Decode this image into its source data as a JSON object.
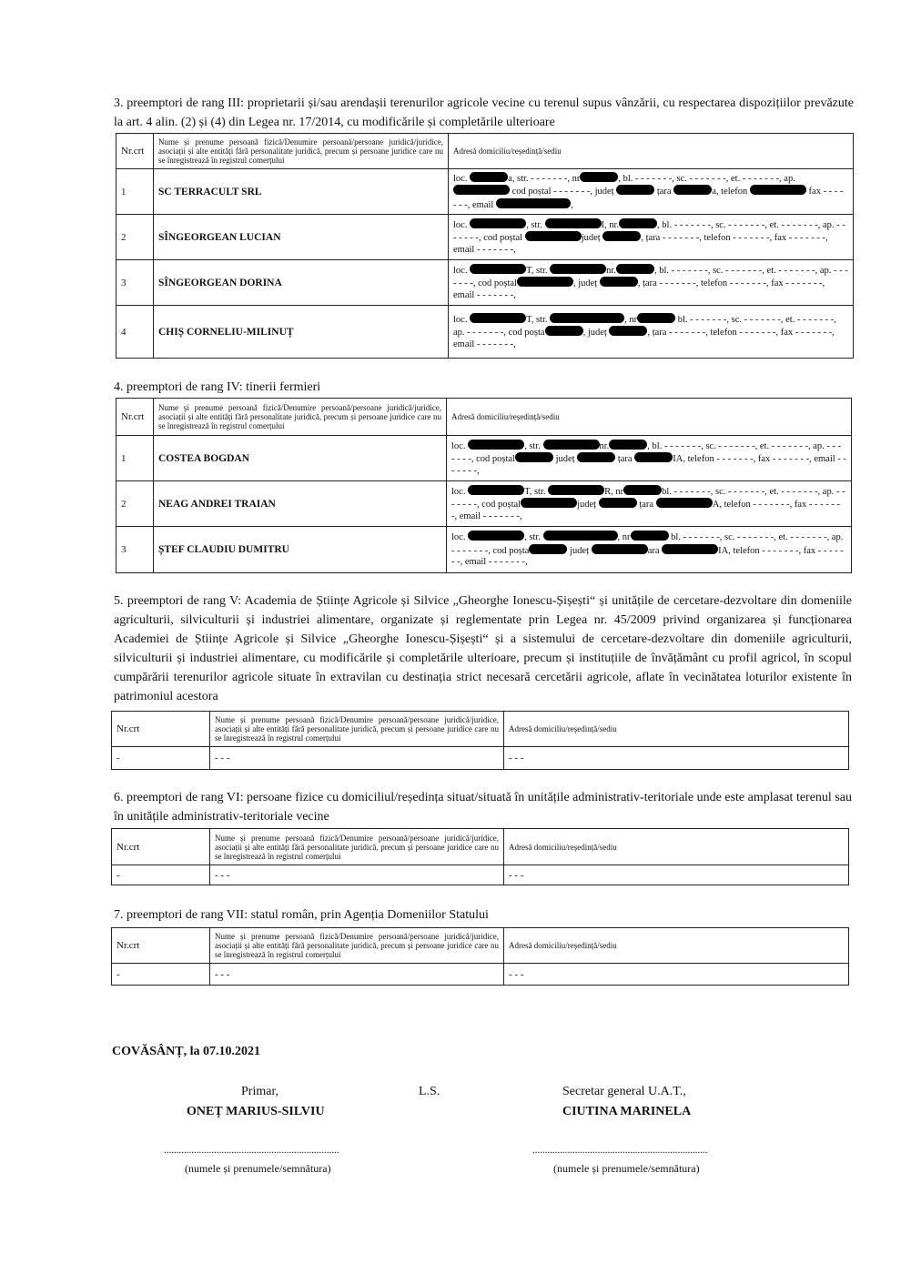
{
  "header_col_nr": "Nr.crt",
  "header_col_name": "Nume și prenume persoană fizică/Denumire persoană/persoane juridică/juridice, asociații și alte entități fără personalitate juridică, precum și persoane juridice care nu se înregistrează în registrul comerțului",
  "header_col_addr": "Adresă domiciliu/reședință/sediu",
  "section3": {
    "title": "3. preemptori de rang III: proprietarii și/sau arendașii terenurilor agricole vecine cu terenul supus vânzării, cu respectarea dispozițiilor prevăzute la art. 4 alin. (2) și (4) din Legea nr. 17/2014, cu modificările și completările ulterioare",
    "rows": [
      {
        "nr": "1",
        "name": "SC TERRACULT SRL",
        "addr": "loc. ■a, str. - - - - - - -, nr■, bl. - - - - - - -, sc. - - - - - - -, et. - - - - - - -, ap. ■■ cod poștal - - - - - - -, județ ■ țara ■a, telefon ■■ fax - - - - - - -, email ■■■,"
      },
      {
        "nr": "2",
        "name": "SÎNGEORGEAN LUCIAN",
        "addr": "loc. ■■, str. ■■I, nr.■, bl. - - - - - - -, sc. - - - - - - -, et. - - - - - - -, ap. - - - - - - -, cod poștal ■■județ ■, țara - - - - - - -, telefon - - - - - - -, fax - - - - - - -, email - - - - - - -,"
      },
      {
        "nr": "3",
        "name": "SÎNGEORGEAN DORINA",
        "addr": "loc. ■■T, str. ■■nr.■, bl. - - - - - - -, sc. - - - - - - -, et. - - - - - - -, ap. - - - - - - -, cod poștal■■, județ ■, țara - - - - - - -, telefon - - - - - - -, fax - - - - - - -, email - - - - - - -,"
      },
      {
        "nr": "4",
        "name": "CHIȘ CORNELIU-MILINUȚ",
        "addr": "loc. ■■T, str. ■■■, nr■ bl. - - - - - - -, sc. - - - - - - -, et. - - - - - - -, ap. - - - - - - -, cod poșta■, județ ■, țara - - - - - - -, telefon - - - - - - -, fax - - - - - - -, email - - - - - - -,"
      }
    ]
  },
  "section4": {
    "title": "4. preemptori de rang IV: tinerii fermieri",
    "rows": [
      {
        "nr": "1",
        "name": "COSTEA BOGDAN",
        "addr": "loc. ■■, str. ■■nr.■, bl. - - - - - - -, sc. - - - - - - -, et. - - - - - - -, ap. - - - - - - -, cod poștal■ județ ■ țara ■IA, telefon - - - - - - -, fax - - - - - - -, email - - - - - - -,"
      },
      {
        "nr": "2",
        "name": "NEAG ANDREI TRAIAN",
        "addr": "loc. ■■T, str. ■■R, nr■bl. - - - - - - -, sc. - - - - - - -, et. - - - - - - -, ap. - - - - - - -, cod poștal■■județ ■ țara ■■A, telefon - - - - - - -, fax - - - - - - -, email - - - - - - -,"
      },
      {
        "nr": "3",
        "name": "ȘTEF CLAUDIU DUMITRU",
        "addr": "loc. ■■, str. ■■■, nr■ bl. - - - - - - -, sc. - - - - - - -, et. - - - - - - -, ap. - - - - - - -, cod poșta■ județ ■■ara ■■IA, telefon - - - - - - -, fax - - - - - - -, email - - - - - - -,"
      }
    ]
  },
  "section5": {
    "title": "5. preemptori de rang V: Academia de Științe Agricole și Silvice „Gheorghe Ionescu-Șișești“ și unitățile de cercetare-dezvoltare din domeniile agriculturii, silviculturii și industriei alimentare, organizate și reglementate prin Legea nr. 45/2009 privind organizarea și funcționarea Academiei de Științe Agricole și Silvice „Gheorghe Ionescu-Șișești“ și a sistemului de cercetare-dezvoltare din domeniile agriculturii, silviculturii și industriei alimentare, cu modificările și completările ulterioare, precum și instituțiile de învățământ cu profil agricol, în scopul cumpărării terenurilor agricole situate în extravilan cu destinația strict necesară cercetării agricole, aflate în vecinătatea loturilor existente în patrimoniul acestora",
    "row": {
      "nr": "-",
      "name": "- - -",
      "addr": "- - -"
    }
  },
  "section6": {
    "title": "6. preemptori de rang VI: persoane fizice cu domiciliul/reședința situat/situată în unitățile administrativ-teritoriale unde este amplasat terenul sau în unitățile administrativ-teritoriale vecine",
    "row": {
      "nr": "-",
      "name": "- - -",
      "addr": "- - -"
    }
  },
  "section7": {
    "title": "7. preemptori de rang VII: statul român, prin Agenția Domeniilor Statului",
    "row": {
      "nr": "-",
      "name": "- - -",
      "addr": "- - -"
    }
  },
  "footer": {
    "place_date": "COVĂSÂNȚ, la 07.10.2021",
    "mayor_title": "Primar,",
    "mayor_name": "ONEȚ MARIUS-SILVIU",
    "ls": "L.S.",
    "secretary_title": "Secretar general U.A.T.,",
    "secretary_name": "CIUTINA MARINELA",
    "dots": "......................................................................",
    "sig_caption": "(numele și prenumele/semnătura)"
  }
}
